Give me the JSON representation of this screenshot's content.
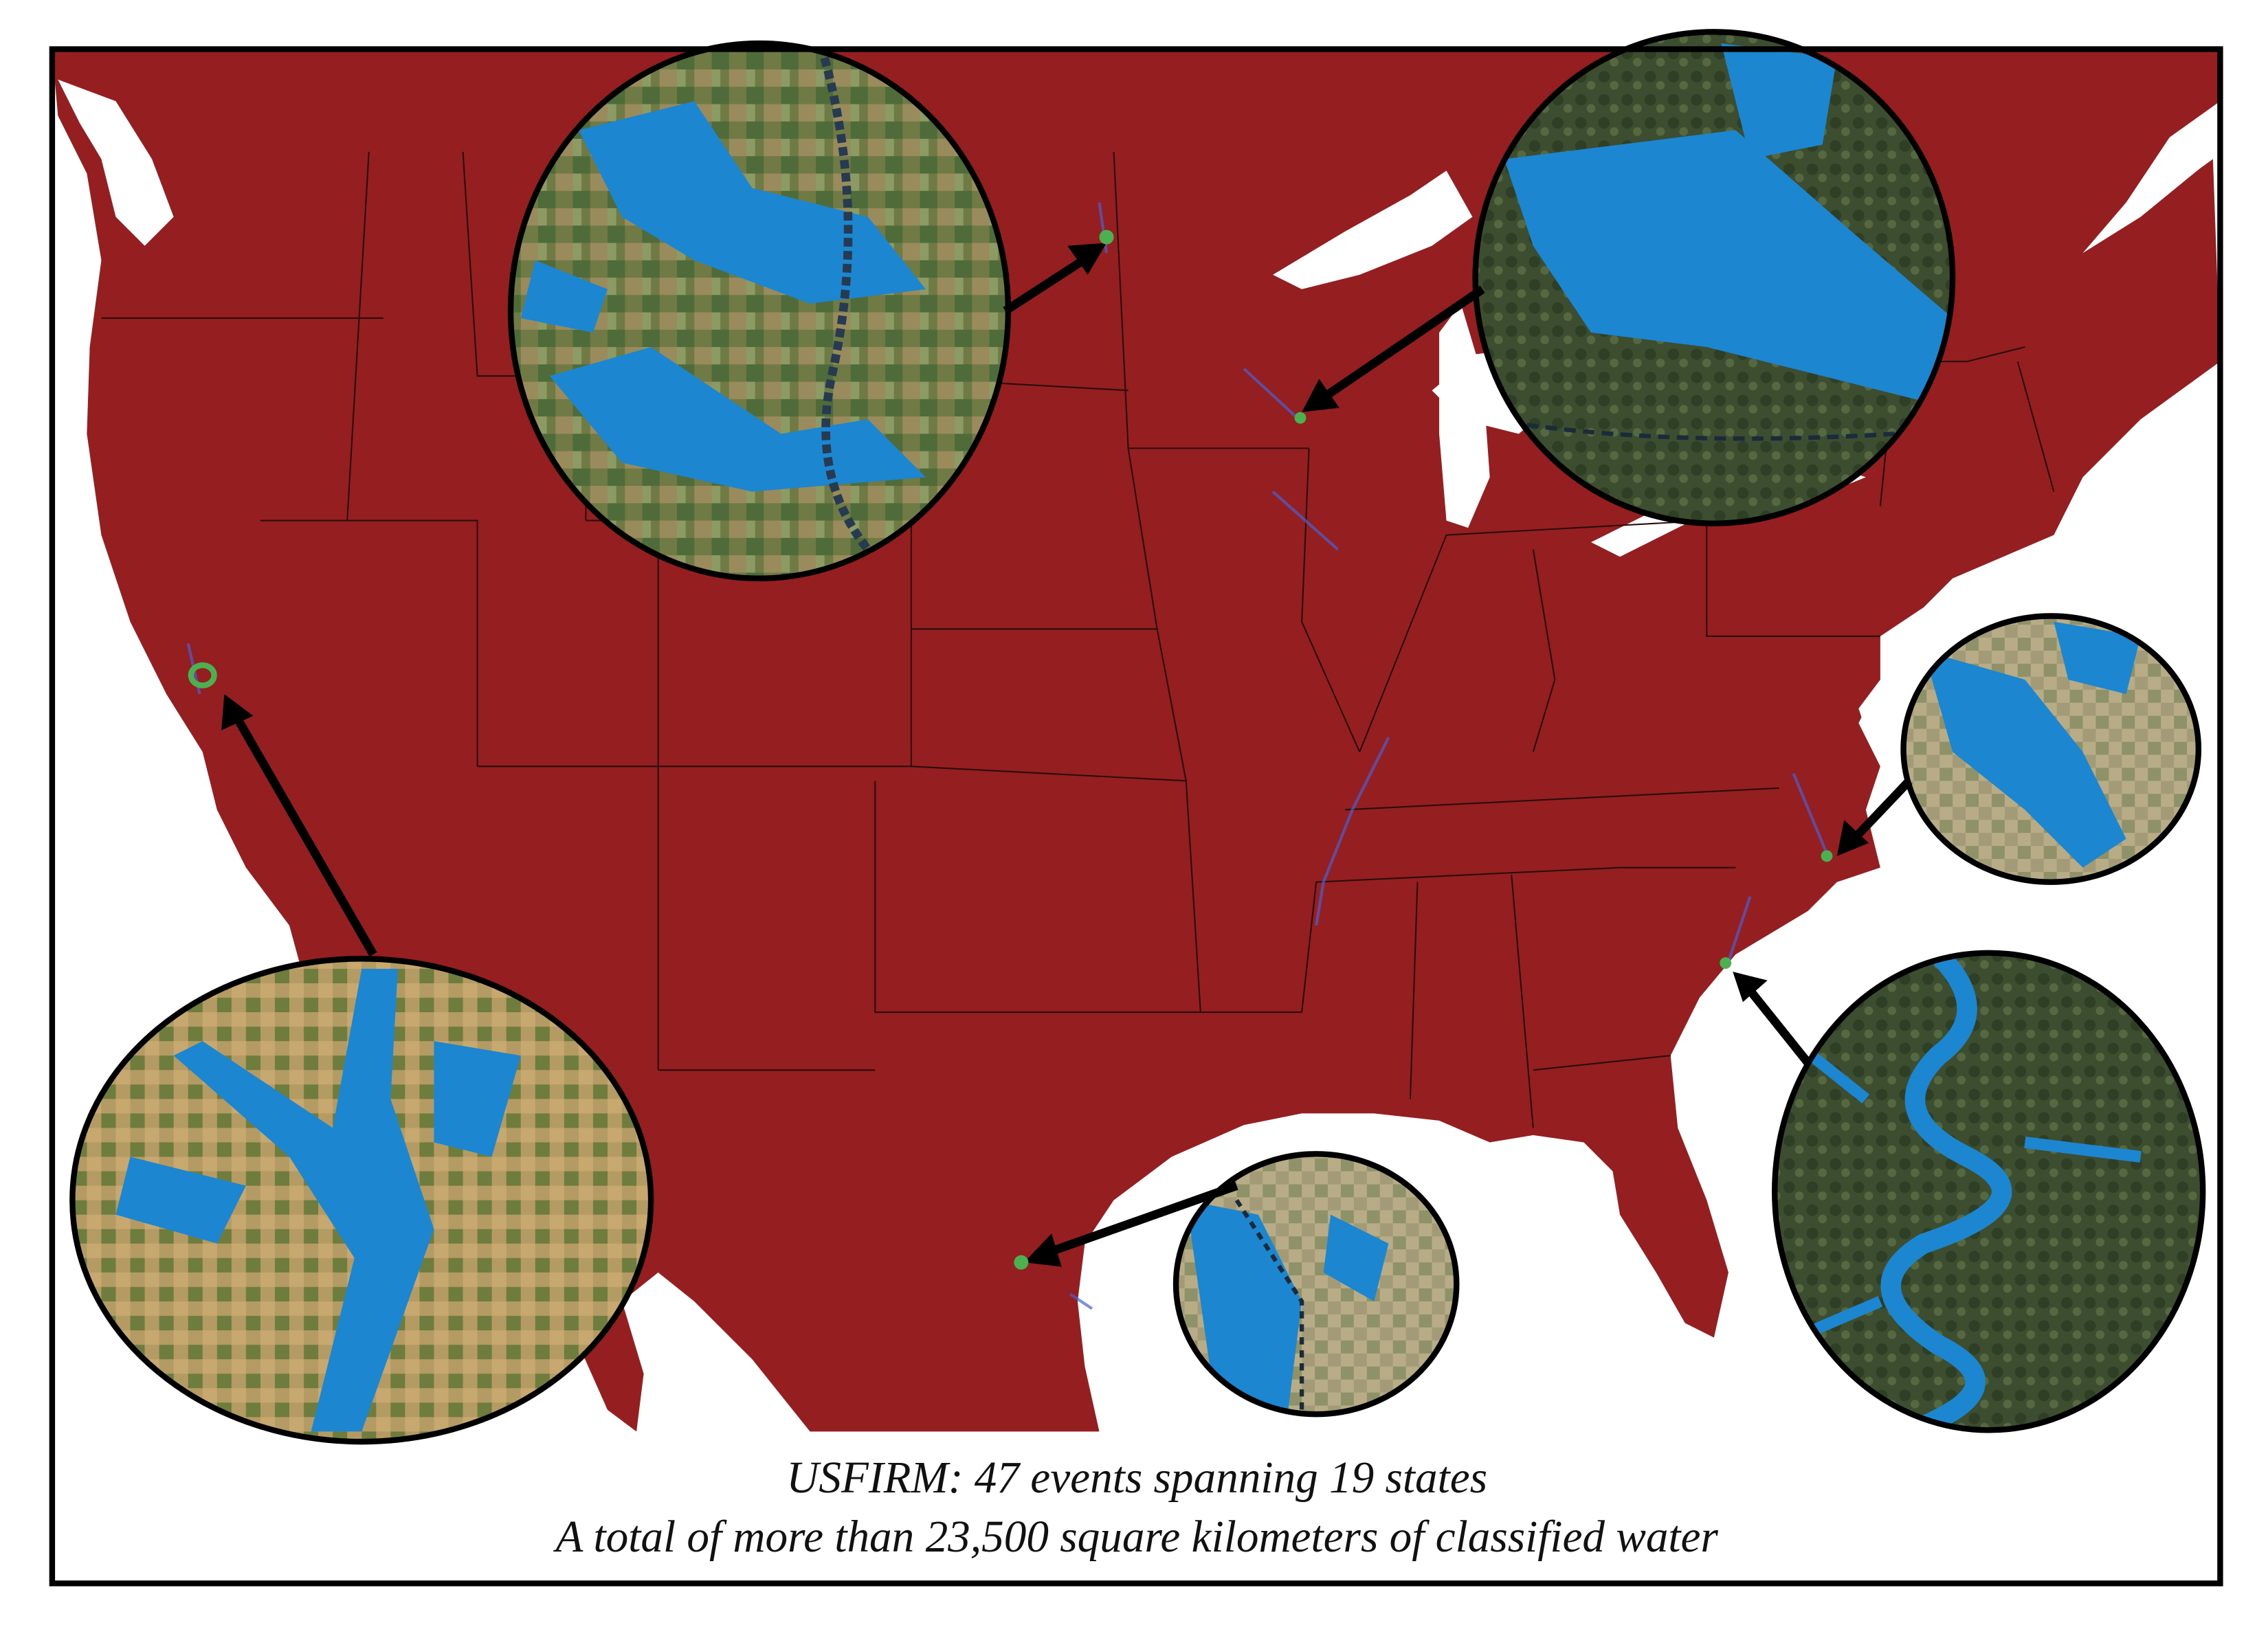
{
  "caption": {
    "line1": "USFIRM: 47 events spanning 19 states",
    "line2": "A total of more than 23,500 square kilometers of classified water"
  }
}
